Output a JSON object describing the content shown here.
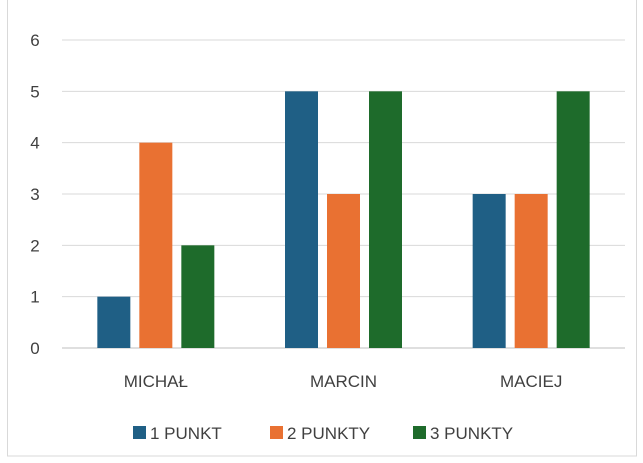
{
  "chart_data": {
    "type": "bar",
    "title": "",
    "categories": [
      "MICHAŁ",
      "MARCIN",
      "MACIEJ"
    ],
    "series": [
      {
        "name": "1 PUNKT",
        "values": [
          1,
          5,
          3
        ],
        "color": "#1f5f85"
      },
      {
        "name": "2 PUNKTY",
        "values": [
          4,
          3,
          3
        ],
        "color": "#e97132"
      },
      {
        "name": "3 PUNKTY",
        "values": [
          2,
          5,
          5
        ],
        "color": "#1e6b2b"
      }
    ],
    "y_ticks": [
      "0",
      "1",
      "2",
      "3",
      "4",
      "5",
      "6"
    ],
    "ylim": [
      0,
      6
    ],
    "grid": true,
    "legend_position": "bottom"
  }
}
